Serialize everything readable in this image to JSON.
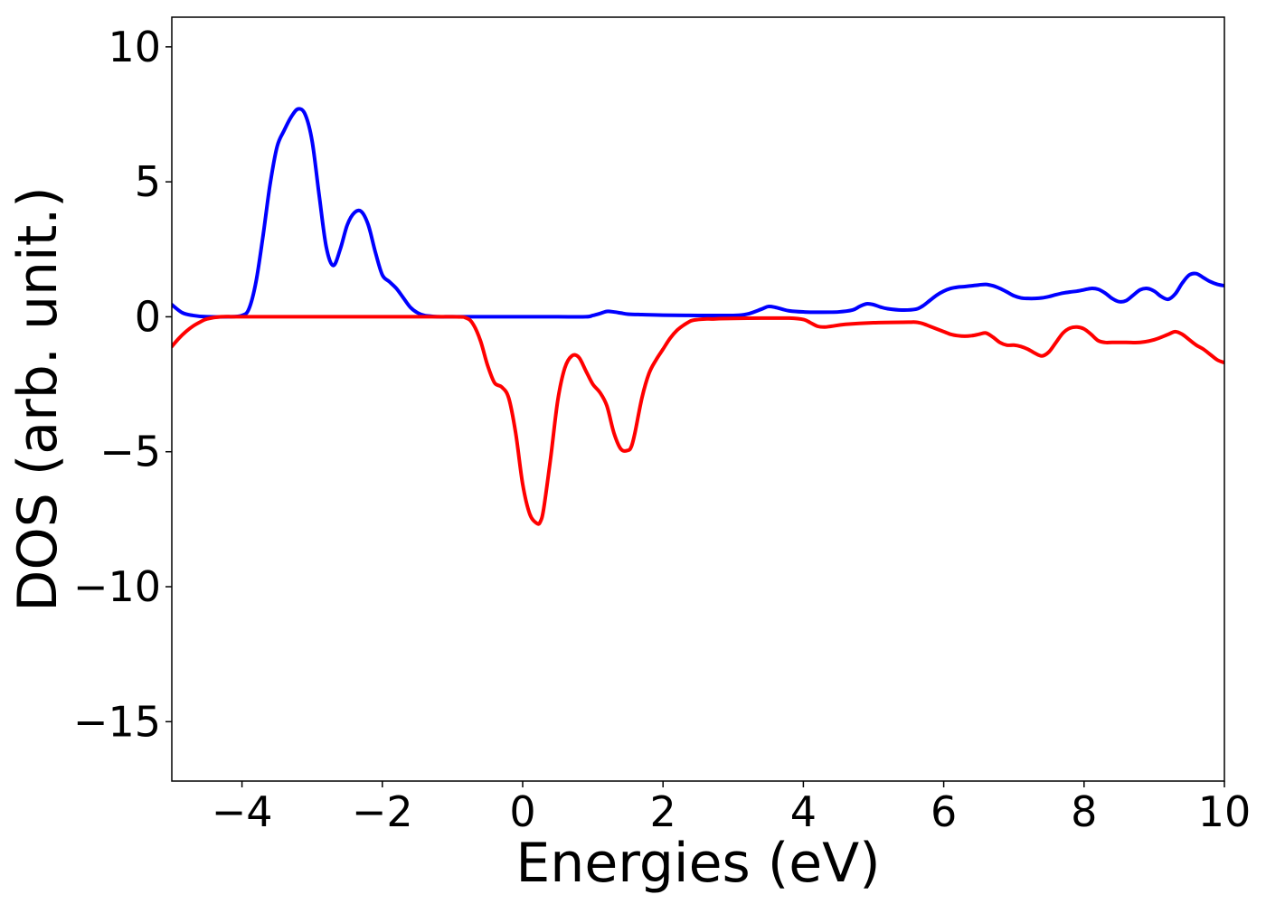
{
  "chart_data": {
    "type": "line",
    "title": "",
    "xlabel": "Energies (eV)",
    "ylabel": "DOS (arb. unit.)",
    "xlim": [
      -5,
      10
    ],
    "ylim": [
      -17.2,
      11.1
    ],
    "grid": false,
    "legend": "none",
    "x_ticks": [
      -4,
      -2,
      0,
      2,
      4,
      6,
      8,
      10
    ],
    "x_tick_labels": [
      "−4",
      "−2",
      "0",
      "2",
      "4",
      "6",
      "8",
      "10"
    ],
    "y_ticks": [
      10,
      5,
      0,
      -5,
      -10,
      -15
    ],
    "y_tick_labels": [
      "10",
      "5",
      "0",
      "−5",
      "−10",
      "−15"
    ],
    "series": [
      {
        "color": "#0000ff",
        "x": [
          -5,
          -4.85,
          -4.7,
          -4.5,
          -4.2,
          -4.0,
          -3.9,
          -3.8,
          -3.7,
          -3.6,
          -3.5,
          -3.4,
          -3.3,
          -3.2,
          -3.1,
          -3.0,
          -2.9,
          -2.8,
          -2.7,
          -2.6,
          -2.5,
          -2.4,
          -2.3,
          -2.2,
          -2.1,
          -2.0,
          -1.9,
          -1.8,
          -1.7,
          -1.6,
          -1.5,
          -1.4,
          -1.3,
          -1.2,
          -1.1,
          -1.0,
          -0.9,
          -0.8,
          -0.6,
          -0.4,
          0,
          0.5,
          0.9,
          1.0,
          1.1,
          1.2,
          1.3,
          1.4,
          1.5,
          1.7,
          2.0,
          2.5,
          3.0,
          3.2,
          3.4,
          3.5,
          3.6,
          3.7,
          3.8,
          4.0,
          4.2,
          4.5,
          4.7,
          4.8,
          4.9,
          5.0,
          5.1,
          5.2,
          5.4,
          5.6,
          5.7,
          5.8,
          5.9,
          6.0,
          6.1,
          6.2,
          6.3,
          6.4,
          6.5,
          6.6,
          6.7,
          6.8,
          6.9,
          7.0,
          7.1,
          7.2,
          7.3,
          7.4,
          7.5,
          7.6,
          7.7,
          7.8,
          7.9,
          8.0,
          8.1,
          8.2,
          8.3,
          8.4,
          8.5,
          8.6,
          8.7,
          8.8,
          8.9,
          9.0,
          9.1,
          9.2,
          9.3,
          9.4,
          9.5,
          9.6,
          9.7,
          9.8,
          9.9,
          10.0
        ],
        "y": [
          0.45,
          0.15,
          0.05,
          0.0,
          0.0,
          0.05,
          0.3,
          1.3,
          3.0,
          4.9,
          6.3,
          6.9,
          7.4,
          7.7,
          7.5,
          6.5,
          4.5,
          2.6,
          1.9,
          2.5,
          3.4,
          3.85,
          3.9,
          3.4,
          2.4,
          1.55,
          1.3,
          1.05,
          0.7,
          0.35,
          0.15,
          0.05,
          0.02,
          0.0,
          0.0,
          0.0,
          0.0,
          0.0,
          0.0,
          0.0,
          0.0,
          0.0,
          0.0,
          0.05,
          0.12,
          0.2,
          0.18,
          0.14,
          0.1,
          0.08,
          0.06,
          0.05,
          0.05,
          0.1,
          0.28,
          0.38,
          0.35,
          0.28,
          0.22,
          0.18,
          0.17,
          0.18,
          0.25,
          0.38,
          0.48,
          0.45,
          0.36,
          0.3,
          0.25,
          0.28,
          0.4,
          0.6,
          0.8,
          0.95,
          1.05,
          1.1,
          1.12,
          1.15,
          1.18,
          1.2,
          1.15,
          1.05,
          0.92,
          0.78,
          0.7,
          0.68,
          0.68,
          0.7,
          0.75,
          0.82,
          0.88,
          0.92,
          0.95,
          1.0,
          1.05,
          1.02,
          0.88,
          0.68,
          0.56,
          0.6,
          0.8,
          1.0,
          1.05,
          0.95,
          0.75,
          0.65,
          0.85,
          1.25,
          1.55,
          1.6,
          1.45,
          1.3,
          1.2,
          1.15
        ],
        "name": ""
      },
      {
        "color": "#ff0000",
        "x": [
          -5,
          -4.9,
          -4.8,
          -4.7,
          -4.6,
          -4.5,
          -4.3,
          -4.0,
          -3.0,
          -2.0,
          -1.0,
          -0.8,
          -0.7,
          -0.6,
          -0.5,
          -0.4,
          -0.3,
          -0.2,
          -0.1,
          0.0,
          0.1,
          0.2,
          0.25,
          0.3,
          0.4,
          0.5,
          0.6,
          0.7,
          0.8,
          0.9,
          1.0,
          1.1,
          1.2,
          1.3,
          1.4,
          1.5,
          1.55,
          1.6,
          1.7,
          1.8,
          1.9,
          2.0,
          2.1,
          2.2,
          2.3,
          2.4,
          2.5,
          2.6,
          2.7,
          2.8,
          3.0,
          3.4,
          3.6,
          3.8,
          4.0,
          4.1,
          4.2,
          4.3,
          4.4,
          4.6,
          5.0,
          5.5,
          5.6,
          5.7,
          5.8,
          5.9,
          6.0,
          6.1,
          6.2,
          6.3,
          6.4,
          6.5,
          6.6,
          6.7,
          6.8,
          6.9,
          7.0,
          7.1,
          7.2,
          7.3,
          7.4,
          7.5,
          7.6,
          7.7,
          7.8,
          7.9,
          8.0,
          8.1,
          8.2,
          8.3,
          8.4,
          8.6,
          8.8,
          9.0,
          9.2,
          9.3,
          9.4,
          9.5,
          9.6,
          9.7,
          9.8,
          9.9,
          10.0
        ],
        "y": [
          -1.1,
          -0.8,
          -0.55,
          -0.35,
          -0.2,
          -0.08,
          0.0,
          0.0,
          0.0,
          0.0,
          0.0,
          -0.05,
          -0.3,
          -0.9,
          -1.8,
          -2.45,
          -2.6,
          -3.0,
          -4.3,
          -6.2,
          -7.3,
          -7.65,
          -7.6,
          -7.1,
          -5.2,
          -3.1,
          -1.9,
          -1.45,
          -1.5,
          -2.0,
          -2.5,
          -2.8,
          -3.3,
          -4.3,
          -4.9,
          -4.95,
          -4.8,
          -4.3,
          -3.0,
          -2.1,
          -1.6,
          -1.2,
          -0.8,
          -0.5,
          -0.3,
          -0.15,
          -0.1,
          -0.08,
          -0.08,
          -0.07,
          -0.06,
          -0.05,
          -0.05,
          -0.05,
          -0.1,
          -0.22,
          -0.35,
          -0.38,
          -0.35,
          -0.28,
          -0.22,
          -0.2,
          -0.2,
          -0.25,
          -0.35,
          -0.45,
          -0.55,
          -0.65,
          -0.7,
          -0.72,
          -0.7,
          -0.65,
          -0.6,
          -0.75,
          -0.95,
          -1.05,
          -1.05,
          -1.1,
          -1.2,
          -1.35,
          -1.45,
          -1.3,
          -0.95,
          -0.6,
          -0.42,
          -0.38,
          -0.45,
          -0.65,
          -0.88,
          -0.95,
          -0.95,
          -0.95,
          -0.95,
          -0.85,
          -0.65,
          -0.55,
          -0.65,
          -0.85,
          -1.05,
          -1.2,
          -1.4,
          -1.6,
          -1.7
        ]
      }
    ]
  }
}
